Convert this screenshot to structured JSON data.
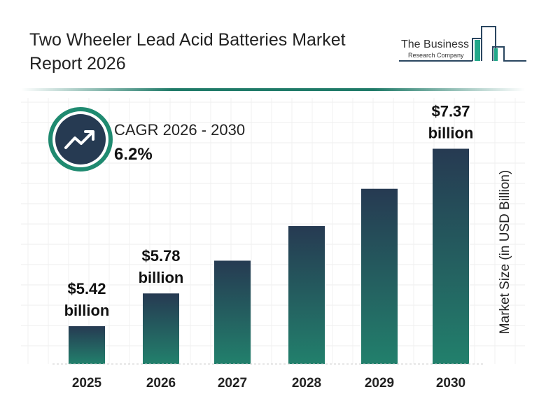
{
  "title": "Two Wheeler Lead Acid Batteries Market Report 2026",
  "logo": {
    "line1": "The Business",
    "line2": "Research Company"
  },
  "cagr": {
    "label": "CAGR 2026 - 2030",
    "value": "6.2%",
    "icon": "trending-up-icon"
  },
  "colors": {
    "bar_top": "#263a52",
    "bar_bottom": "#22806c",
    "accent": "#1f7a68",
    "icon_bg": "#263a52"
  },
  "chart_data": {
    "type": "bar",
    "categories": [
      "2025",
      "2026",
      "2027",
      "2028",
      "2029",
      "2030"
    ],
    "values": [
      5.42,
      5.78,
      6.14,
      6.52,
      6.93,
      7.37
    ],
    "data_labels": [
      {
        "category": "2025",
        "value": "$5.42",
        "unit": "billion"
      },
      {
        "category": "2026",
        "value": "$5.78",
        "unit": "billion"
      },
      {
        "category": "2030",
        "value": "$7.37",
        "unit": "billion"
      }
    ],
    "xlabel": "",
    "ylabel": "Market Size (in USD Billion)",
    "grid": true
  }
}
